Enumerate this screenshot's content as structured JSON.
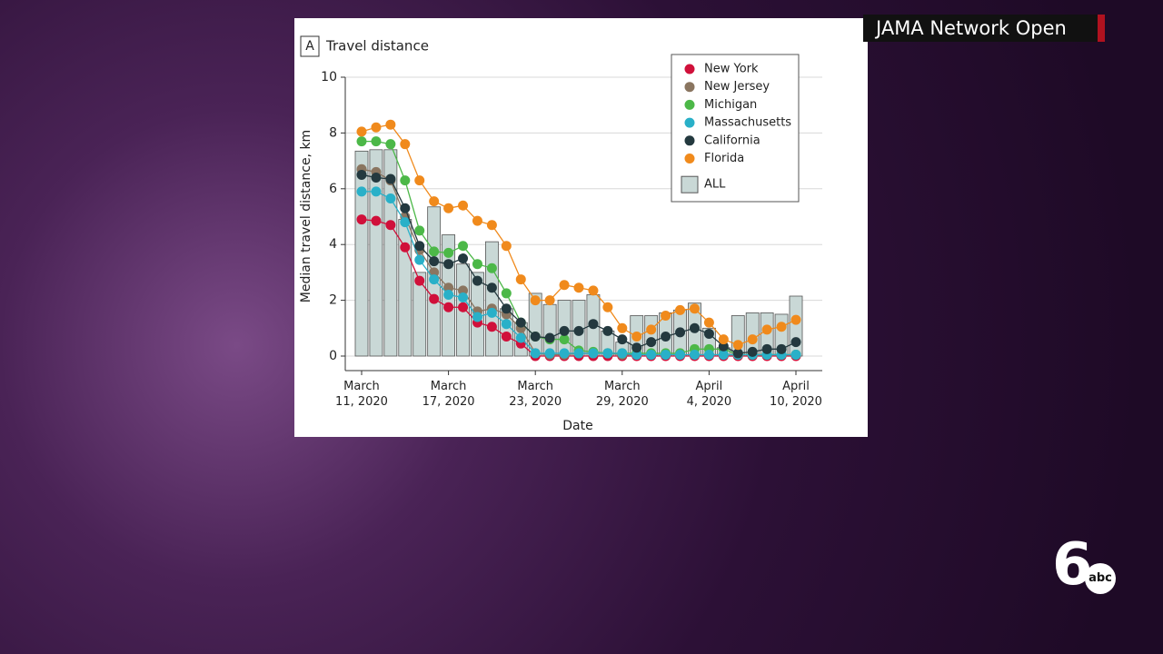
{
  "overlay": {
    "source": "JAMA Network Open",
    "logo_number": "6",
    "logo_text": "abc"
  },
  "chart_data": {
    "type": "combo",
    "panel_label": "A",
    "title": "Travel distance",
    "y_label": "Median travel distance, km",
    "x_label": "Date",
    "categories": [
      "March\n11, 2020",
      null,
      null,
      null,
      null,
      null,
      "March\n17, 2020",
      null,
      null,
      null,
      null,
      null,
      "March\n23, 2020",
      null,
      null,
      null,
      null,
      null,
      "March\n29, 2020",
      null,
      null,
      null,
      null,
      null,
      "April\n4, 2020",
      null,
      null,
      null,
      null,
      null,
      "April\n10, 2020"
    ],
    "ylim": [
      0,
      10
    ],
    "yticks": [
      0,
      2,
      4,
      6,
      8,
      10
    ],
    "grid": true,
    "legend": "top right",
    "series": [
      {
        "name": "ALL",
        "type": "bar",
        "color": "#c9d8d6",
        "values": [
          7.35,
          7.4,
          7.4,
          4.9,
          3.0,
          5.35,
          4.35,
          3.3,
          3.0,
          4.1,
          1.7,
          1.2,
          2.25,
          1.85,
          2.0,
          2.0,
          2.2,
          0.9,
          0.5,
          1.45,
          1.45,
          1.55,
          1.65,
          1.9,
          1.0,
          0.3,
          1.45,
          1.55,
          1.55,
          1.5,
          2.15
        ]
      },
      {
        "name": "New York",
        "type": "line",
        "color": "#d0103a",
        "values": [
          4.9,
          4.85,
          4.7,
          3.9,
          2.7,
          2.05,
          1.75,
          1.75,
          1.2,
          1.05,
          0.7,
          0.45,
          0,
          0,
          0,
          0,
          0,
          0,
          0,
          0,
          0,
          0,
          0,
          0,
          0,
          0,
          0,
          0,
          0,
          0,
          0
        ]
      },
      {
        "name": "New Jersey",
        "type": "line",
        "color": "#8a7560",
        "values": [
          6.7,
          6.6,
          6.3,
          5.0,
          3.8,
          3.0,
          2.45,
          2.35,
          1.6,
          1.7,
          1.5,
          1.0,
          0.1,
          0.05,
          0.05,
          0.1,
          0.1,
          0.1,
          0.05,
          0.05,
          0.05,
          0.05,
          0.05,
          0.05,
          0.05,
          0.05,
          0.05,
          0.05,
          0.05,
          0.05,
          0.05
        ]
      },
      {
        "name": "Michigan",
        "type": "line",
        "color": "#4cb848",
        "values": [
          7.7,
          7.7,
          7.6,
          6.3,
          4.5,
          3.75,
          3.7,
          3.95,
          3.3,
          3.15,
          2.25,
          1.2,
          0.7,
          0.6,
          0.6,
          0.2,
          0.15,
          0.1,
          0.1,
          0.1,
          0.1,
          0.1,
          0.1,
          0.25,
          0.25,
          0.25,
          0.05,
          0.05,
          0.05,
          0.05,
          0.05
        ]
      },
      {
        "name": "Massachusetts",
        "type": "line",
        "color": "#29b0c8",
        "values": [
          5.9,
          5.9,
          5.65,
          4.8,
          3.45,
          2.75,
          2.2,
          2.1,
          1.4,
          1.55,
          1.15,
          0.65,
          0.1,
          0.1,
          0.1,
          0.1,
          0.1,
          0.1,
          0.1,
          0.05,
          0.05,
          0.05,
          0.05,
          0.05,
          0.05,
          0.05,
          0.05,
          0.05,
          0.05,
          0.05,
          0.05
        ]
      },
      {
        "name": "California",
        "type": "line",
        "color": "#24393f",
        "values": [
          6.5,
          6.4,
          6.35,
          5.3,
          3.95,
          3.4,
          3.3,
          3.5,
          2.7,
          2.45,
          1.7,
          1.2,
          0.7,
          0.65,
          0.9,
          0.9,
          1.15,
          0.9,
          0.6,
          0.3,
          0.5,
          0.7,
          0.85,
          1.0,
          0.8,
          0.35,
          0.1,
          0.15,
          0.25,
          0.25,
          0.5
        ]
      },
      {
        "name": "Florida",
        "type": "line",
        "color": "#f08a1c",
        "values": [
          8.05,
          8.2,
          8.3,
          7.6,
          6.3,
          5.55,
          5.3,
          5.4,
          4.85,
          4.7,
          3.95,
          2.75,
          2.0,
          2.0,
          2.55,
          2.45,
          2.35,
          1.75,
          1.0,
          0.7,
          0.95,
          1.45,
          1.65,
          1.7,
          1.2,
          0.6,
          0.4,
          0.6,
          0.95,
          1.05,
          1.3
        ]
      }
    ]
  }
}
